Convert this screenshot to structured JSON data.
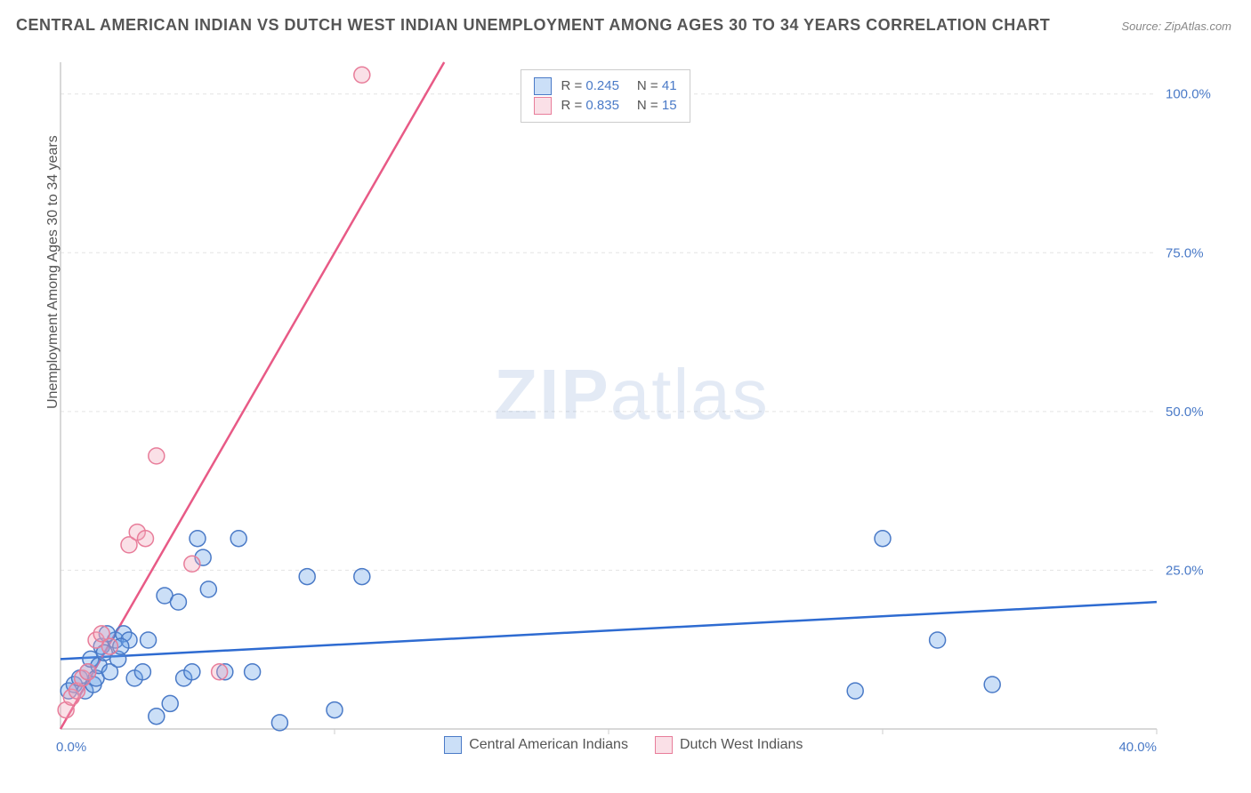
{
  "title": "CENTRAL AMERICAN INDIAN VS DUTCH WEST INDIAN UNEMPLOYMENT AMONG AGES 30 TO 34 YEARS CORRELATION CHART",
  "source": "Source: ZipAtlas.com",
  "ylabel": "Unemployment Among Ages 30 to 34 years",
  "watermark_a": "ZIP",
  "watermark_b": "atlas",
  "chart": {
    "type": "scatter",
    "background_color": "#ffffff",
    "grid_color": "#e3e3e3",
    "axis_color": "#cccccc",
    "xlim": [
      0,
      40
    ],
    "ylim": [
      0,
      105
    ],
    "xticks": [
      0,
      10,
      20,
      30,
      40
    ],
    "xtick_labels": [
      "0.0%",
      "",
      "",
      "",
      "40.0%"
    ],
    "yticks": [
      25,
      50,
      75,
      100
    ],
    "ytick_labels": [
      "25.0%",
      "50.0%",
      "75.0%",
      "100.0%"
    ],
    "tick_label_color": "#4a7ac7",
    "tick_fontsize": 15,
    "marker_radius": 9,
    "marker_opacity": 0.55,
    "line_width": 2.5,
    "series": [
      {
        "name": "Central American Indians",
        "color": "#6ba3e8",
        "fill": "rgba(107,163,232,0.35)",
        "stroke": "#4a7ac7",
        "line_color": "#2e6bd1",
        "R": "0.245",
        "N": "41",
        "trend": {
          "x1": 0,
          "y1": 11,
          "x2": 40,
          "y2": 20
        },
        "points": [
          [
            0.3,
            6
          ],
          [
            0.5,
            7
          ],
          [
            0.7,
            8
          ],
          [
            0.9,
            6
          ],
          [
            1.0,
            9
          ],
          [
            1.1,
            11
          ],
          [
            1.2,
            7
          ],
          [
            1.3,
            8
          ],
          [
            1.4,
            10
          ],
          [
            1.5,
            13
          ],
          [
            1.6,
            12
          ],
          [
            1.8,
            9
          ],
          [
            2.0,
            14
          ],
          [
            2.1,
            11
          ],
          [
            2.3,
            15
          ],
          [
            2.5,
            14
          ],
          [
            2.7,
            8
          ],
          [
            3.0,
            9
          ],
          [
            3.2,
            14
          ],
          [
            3.5,
            2
          ],
          [
            3.8,
            21
          ],
          [
            4.0,
            4
          ],
          [
            4.3,
            20
          ],
          [
            4.5,
            8
          ],
          [
            4.8,
            9
          ],
          [
            5.0,
            30
          ],
          [
            5.2,
            27
          ],
          [
            5.4,
            22
          ],
          [
            6.0,
            9
          ],
          [
            6.5,
            30
          ],
          [
            7.0,
            9
          ],
          [
            8.0,
            1
          ],
          [
            9.0,
            24
          ],
          [
            10.0,
            3
          ],
          [
            11.0,
            24
          ],
          [
            29.0,
            6
          ],
          [
            30.0,
            30
          ],
          [
            32.0,
            14
          ],
          [
            34.0,
            7
          ],
          [
            2.2,
            13
          ],
          [
            1.7,
            15
          ]
        ]
      },
      {
        "name": "Dutch West Indians",
        "color": "#f2a6bb",
        "fill": "rgba(242,166,187,0.35)",
        "stroke": "#e87d9a",
        "line_color": "#e85a86",
        "R": "0.835",
        "N": "15",
        "trend": {
          "x1": 0,
          "y1": 0,
          "x2": 14,
          "y2": 105
        },
        "points": [
          [
            0.2,
            3
          ],
          [
            0.4,
            5
          ],
          [
            0.6,
            6
          ],
          [
            0.8,
            8
          ],
          [
            1.0,
            9
          ],
          [
            1.3,
            14
          ],
          [
            1.5,
            15
          ],
          [
            1.8,
            13
          ],
          [
            2.5,
            29
          ],
          [
            2.8,
            31
          ],
          [
            3.1,
            30
          ],
          [
            3.5,
            43
          ],
          [
            4.8,
            26
          ],
          [
            5.8,
            9
          ],
          [
            11.0,
            103
          ]
        ]
      }
    ]
  },
  "legend_stats_pos": {
    "x_percent": 42,
    "y_percent": 1
  },
  "legend_bottom": {
    "items": [
      "Central American Indians",
      "Dutch West Indians"
    ]
  }
}
